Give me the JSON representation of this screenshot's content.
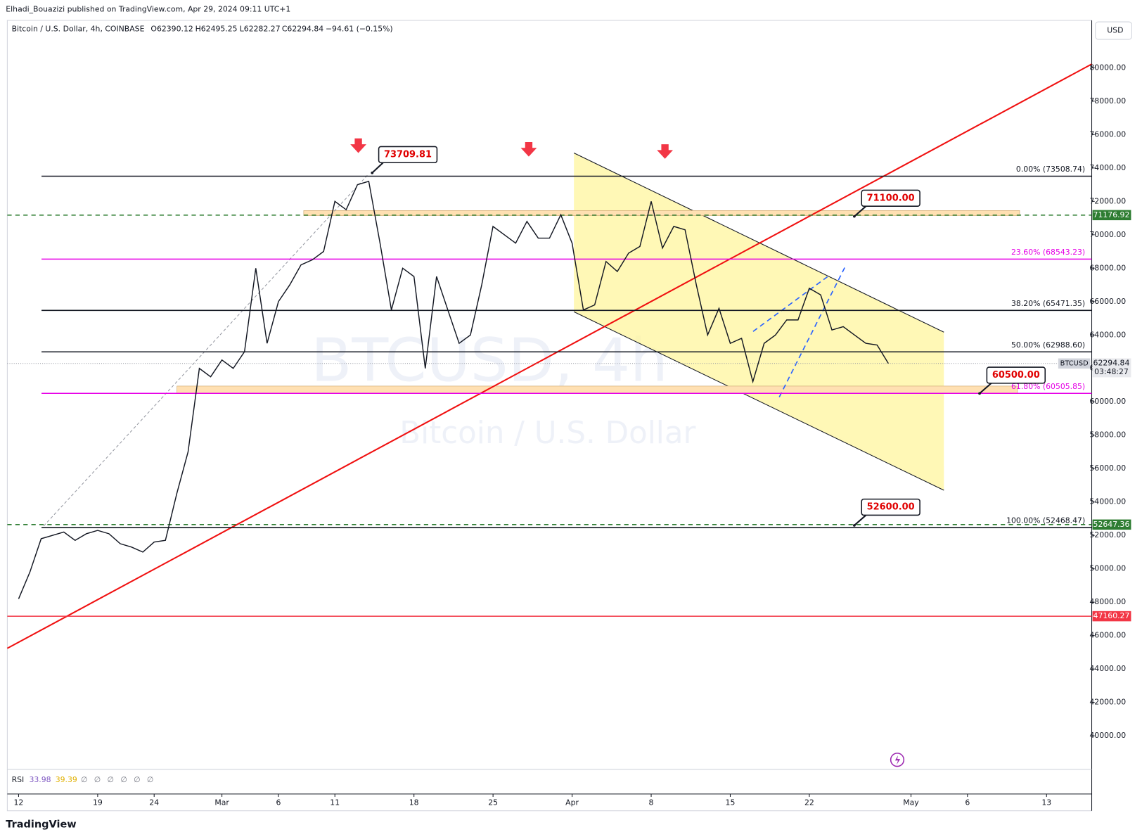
{
  "header": {
    "publisher": "Elhadi_Bouazizi published on TradingView.com, Apr 29, 2024 09:11 UTC+1",
    "symbol": "Bitcoin / U.S. Dollar, 4h, COINBASE",
    "open": "O62390.12",
    "high": "H62495.25",
    "low": "L62282.27",
    "close": "C62294.84",
    "change": "−94.61 (−0.15%)"
  },
  "watermark": {
    "symbol": "BTCUSD, 4h",
    "name": "Bitcoin / U.S. Dollar"
  },
  "rsi": {
    "label": "RSI",
    "value": "33.98",
    "ma": "39.39"
  },
  "currency": "USD",
  "countdown": "03:48:27",
  "brand": "TradingView",
  "chart_data": {
    "type": "line",
    "x": [
      "2024-02-12",
      "2024-02-13",
      "2024-02-14",
      "2024-02-15",
      "2024-02-16",
      "2024-02-17",
      "2024-02-18",
      "2024-02-19",
      "2024-02-20",
      "2024-02-21",
      "2024-02-22",
      "2024-02-23",
      "2024-02-24",
      "2024-02-25",
      "2024-02-26",
      "2024-02-27",
      "2024-02-28",
      "2024-02-29",
      "2024-03-01",
      "2024-03-02",
      "2024-03-03",
      "2024-03-04",
      "2024-03-05",
      "2024-03-06",
      "2024-03-07",
      "2024-03-08",
      "2024-03-09",
      "2024-03-10",
      "2024-03-11",
      "2024-03-12",
      "2024-03-13",
      "2024-03-14",
      "2024-03-15",
      "2024-03-16",
      "2024-03-17",
      "2024-03-18",
      "2024-03-19",
      "2024-03-20",
      "2024-03-21",
      "2024-03-22",
      "2024-03-23",
      "2024-03-24",
      "2024-03-25",
      "2024-03-26",
      "2024-03-27",
      "2024-03-28",
      "2024-03-29",
      "2024-03-30",
      "2024-03-31",
      "2024-04-01",
      "2024-04-02",
      "2024-04-03",
      "2024-04-04",
      "2024-04-05",
      "2024-04-06",
      "2024-04-07",
      "2024-04-08",
      "2024-04-09",
      "2024-04-10",
      "2024-04-11",
      "2024-04-12",
      "2024-04-13",
      "2024-04-14",
      "2024-04-15",
      "2024-04-16",
      "2024-04-17",
      "2024-04-18",
      "2024-04-19",
      "2024-04-20",
      "2024-04-21",
      "2024-04-22",
      "2024-04-23",
      "2024-04-24",
      "2024-04-25",
      "2024-04-26",
      "2024-04-27",
      "2024-04-28",
      "2024-04-29"
    ],
    "series": [
      {
        "name": "BTCUSD",
        "color": "#131722",
        "values": [
          48200,
          49800,
          51800,
          52000,
          52200,
          51700,
          52100,
          52300,
          52100,
          51500,
          51300,
          51000,
          51600,
          51700,
          54500,
          57000,
          62000,
          61500,
          62500,
          62000,
          63000,
          68000,
          63500,
          66000,
          67000,
          68200,
          68500,
          69000,
          72000,
          71500,
          73000,
          73200,
          69500,
          65500,
          68000,
          67500,
          62000,
          67500,
          65500,
          63500,
          64000,
          67000,
          70500,
          70000,
          69500,
          70800,
          69800,
          69800,
          71200,
          69500,
          65500,
          65800,
          68400,
          67800,
          68900,
          69300,
          72000,
          69200,
          70500,
          70300,
          67000,
          64000,
          65600,
          63500,
          63800,
          61200,
          63500,
          64000,
          64900,
          64900,
          66800,
          66400,
          64300,
          64500,
          64000,
          63500,
          63400,
          62294.84
        ]
      }
    ],
    "xlim": [
      "2024-02-11",
      "2024-05-17"
    ],
    "xticks": [
      {
        "value": "2024-02-12",
        "label": "12"
      },
      {
        "value": "2024-02-19",
        "label": "19"
      },
      {
        "value": "2024-02-24",
        "label": "24"
      },
      {
        "value": "2024-03-01",
        "label": "Mar"
      },
      {
        "value": "2024-03-06",
        "label": "6"
      },
      {
        "value": "2024-03-11",
        "label": "11"
      },
      {
        "value": "2024-03-18",
        "label": "18"
      },
      {
        "value": "2024-03-25",
        "label": "25"
      },
      {
        "value": "2024-04-01",
        "label": "Apr"
      },
      {
        "value": "2024-04-08",
        "label": "8"
      },
      {
        "value": "2024-04-15",
        "label": "15"
      },
      {
        "value": "2024-04-22",
        "label": "22"
      },
      {
        "value": "2024-05-01",
        "label": "May"
      },
      {
        "value": "2024-05-06",
        "label": "6"
      },
      {
        "value": "2024-05-13",
        "label": "13"
      }
    ],
    "ylim": [
      38040,
      82750
    ],
    "yticks": [
      {
        "value": 40000,
        "label": "40000.00"
      },
      {
        "value": 42000,
        "label": "42000.00"
      },
      {
        "value": 44000,
        "label": "44000.00"
      },
      {
        "value": 46000,
        "label": "46000.00"
      },
      {
        "value": 48000,
        "label": "48000.00"
      },
      {
        "value": 50000,
        "label": "50000.00"
      },
      {
        "value": 52000,
        "label": "52000.00"
      },
      {
        "value": 54000,
        "label": "54000.00"
      },
      {
        "value": 56000,
        "label": "56000.00"
      },
      {
        "value": 58000,
        "label": "58000.00"
      },
      {
        "value": 60000,
        "label": "60000.00"
      },
      {
        "value": 62000,
        "label": "62000.00"
      },
      {
        "value": 64000,
        "label": "64000.00"
      },
      {
        "value": 66000,
        "label": "66000.00"
      },
      {
        "value": 68000,
        "label": "68000.00"
      },
      {
        "value": 70000,
        "label": "70000.00"
      },
      {
        "value": 72000,
        "label": "72000.00"
      },
      {
        "value": 74000,
        "label": "74000.00"
      },
      {
        "value": 76000,
        "label": "76000.00"
      },
      {
        "value": 78000,
        "label": "78000.00"
      },
      {
        "value": 80000,
        "label": "80000.00"
      }
    ],
    "fib_levels": [
      {
        "value": 73508.74,
        "label": "0.00% (73508.74)",
        "color": "#131722"
      },
      {
        "value": 68543.23,
        "label": "23.60% (68543.23)",
        "color": "#e600e6"
      },
      {
        "value": 65471.35,
        "label": "38.20% (65471.35)",
        "color": "#131722"
      },
      {
        "value": 62988.6,
        "label": "50.00% (62988.60)",
        "color": "#131722"
      },
      {
        "value": 60505.85,
        "label": "61.80% (60505.85)",
        "color": "#e600e6"
      },
      {
        "value": 52468.47,
        "label": "100.00% (52468.47)",
        "color": "#131722"
      }
    ],
    "price_lines": [
      {
        "value": 71176.92,
        "color": "#2e7d32",
        "style": "dashed"
      },
      {
        "value": 52647.36,
        "color": "#2e7d32",
        "style": "dashed"
      },
      {
        "value": 47160.27,
        "color": "#f23645",
        "style": "solid"
      }
    ],
    "annotations": [
      {
        "value": 73709.81,
        "label": "73709.81"
      },
      {
        "value": 71100,
        "label": "71100.00"
      },
      {
        "value": 60500,
        "label": "60500.00"
      },
      {
        "value": 52600,
        "label": "52600.00"
      }
    ],
    "last_price": 62294.84
  }
}
